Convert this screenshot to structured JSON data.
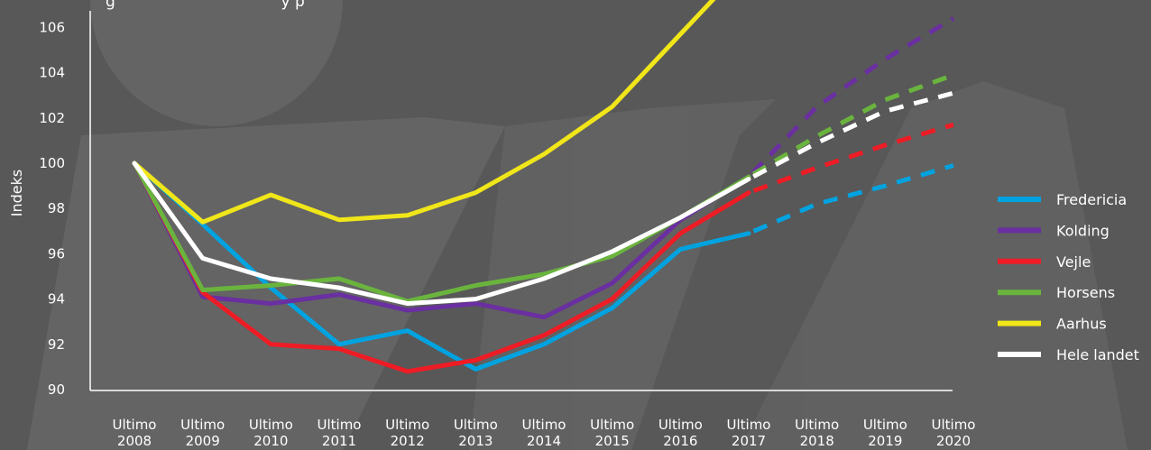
{
  "chart_data": {
    "type": "line",
    "title": "",
    "top_text": "g                                  y p",
    "ylabel": "Indeks",
    "xlabel": "",
    "ylim": [
      90,
      107
    ],
    "yticks": [
      90,
      92,
      94,
      96,
      98,
      100,
      102,
      104,
      106
    ],
    "categories": [
      [
        "Ultimo",
        "2008"
      ],
      [
        "Ultimo",
        "2009"
      ],
      [
        "Ultimo",
        "2010"
      ],
      [
        "Ultimo",
        "2011"
      ],
      [
        "Ultimo",
        "2012"
      ],
      [
        "Ultimo",
        "2013"
      ],
      [
        "Ultimo",
        "2014"
      ],
      [
        "Ultimo",
        "2015"
      ],
      [
        "Ultimo",
        "2016"
      ],
      [
        "Ultimo",
        "2017"
      ],
      [
        "Ultimo",
        "2018"
      ],
      [
        "Ultimo",
        "2019"
      ],
      [
        "Ultimo",
        "2020"
      ]
    ],
    "projection_starts_after": "Ultimo 2017",
    "legend_position": "right",
    "grid": false,
    "series": [
      {
        "name": "Fredericia",
        "color": "#00a3e0",
        "values": [
          100.0,
          97.3,
          94.5,
          92.0,
          92.6,
          90.9,
          92.0,
          93.6,
          96.2,
          96.9,
          98.2,
          99.0,
          99.9
        ]
      },
      {
        "name": "Kolding",
        "color": "#6a2fa0",
        "values": [
          100.0,
          94.1,
          93.8,
          94.2,
          93.5,
          93.8,
          93.2,
          94.7,
          97.5,
          99.4,
          102.5,
          104.6,
          106.4
        ]
      },
      {
        "name": "Vejle",
        "color": "#ee1c25",
        "values": [
          100.0,
          94.3,
          92.0,
          91.8,
          90.8,
          91.3,
          92.4,
          94.0,
          96.9,
          98.7,
          99.8,
          100.8,
          101.7
        ]
      },
      {
        "name": "Horsens",
        "color": "#6ab43e",
        "values": [
          100.0,
          94.4,
          94.6,
          94.9,
          93.9,
          94.6,
          95.1,
          95.9,
          97.6,
          99.4,
          101.2,
          102.8,
          103.9
        ]
      },
      {
        "name": "Aarhus",
        "color": "#f0e619",
        "values": [
          100.0,
          97.4,
          98.6,
          97.5,
          97.7,
          98.7,
          100.4,
          102.5,
          105.7,
          108.9,
          null,
          null,
          null
        ]
      },
      {
        "name": "Hele landet",
        "color": "#ffffff",
        "values": [
          100.0,
          95.8,
          94.9,
          94.5,
          93.8,
          94.0,
          94.9,
          96.1,
          97.6,
          99.3,
          100.9,
          102.3,
          103.1
        ]
      }
    ]
  }
}
